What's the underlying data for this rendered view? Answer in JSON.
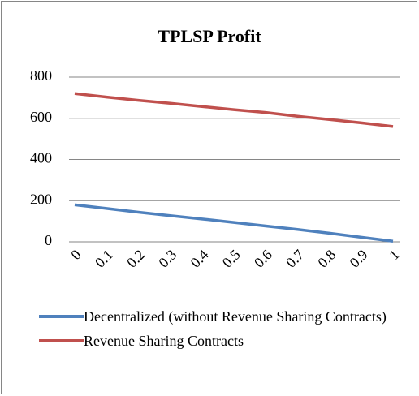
{
  "chart_data": {
    "type": "line",
    "title": "TPLSP Profit",
    "categories": [
      "0",
      "0.1",
      "0.2",
      "0.3",
      "0.4",
      "0.5",
      "0.6",
      "0.7",
      "0.8",
      "0.9",
      "1"
    ],
    "series": [
      {
        "name": "Decentralized (without Revenue Sharing Contracts)",
        "color": "#4f81bd",
        "values": [
          180,
          162,
          144,
          127,
          111,
          94,
          77,
          60,
          42,
          22,
          3
        ]
      },
      {
        "name": "Revenue Sharing Contracts",
        "color": "#c0504d",
        "values": [
          720,
          703,
          687,
          673,
          657,
          642,
          628,
          610,
          594,
          578,
          560
        ]
      }
    ],
    "ylim": [
      0,
      800
    ],
    "yticks": [
      0,
      200,
      400,
      600,
      800
    ],
    "grid": true,
    "legend": "bottom"
  }
}
